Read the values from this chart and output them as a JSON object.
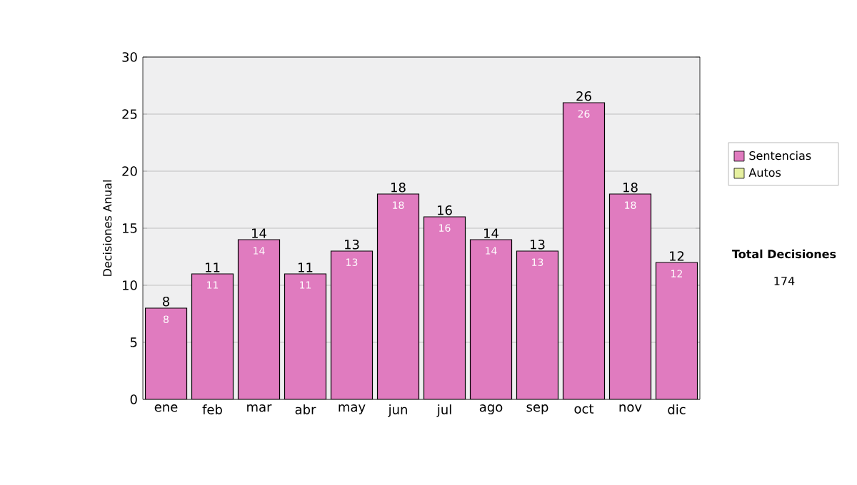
{
  "chart_data": {
    "type": "bar",
    "stacked": true,
    "ylabel": "Decisiones Anual",
    "categories": [
      "ene",
      "feb",
      "mar",
      "abr",
      "may",
      "jun",
      "jul",
      "ago",
      "sep",
      "oct",
      "nov",
      "dic"
    ],
    "series": [
      {
        "name": "Sentencias",
        "color": "#e07bbf",
        "values": [
          8,
          11,
          14,
          11,
          13,
          18,
          16,
          14,
          13,
          26,
          18,
          12
        ],
        "value_labels": [
          "8",
          "11",
          "14",
          "11",
          "13",
          "18",
          "16",
          "14",
          "13",
          "26",
          "18",
          "12"
        ]
      },
      {
        "name": "Autos",
        "color": "#e6f0a0",
        "values": [
          0,
          0,
          0,
          0,
          0,
          0,
          0,
          0,
          0,
          0,
          0,
          0
        ]
      }
    ],
    "totals": [
      "8",
      "11",
      "14",
      "11",
      "13",
      "18",
      "16",
      "14",
      "13",
      "26",
      "18",
      "12"
    ],
    "ylim": [
      0,
      30
    ],
    "yticks": [
      0,
      5,
      10,
      15,
      20,
      25,
      30
    ],
    "grid": "y",
    "legend": "right",
    "annotations": [
      "Total Decisiones",
      "174"
    ]
  }
}
